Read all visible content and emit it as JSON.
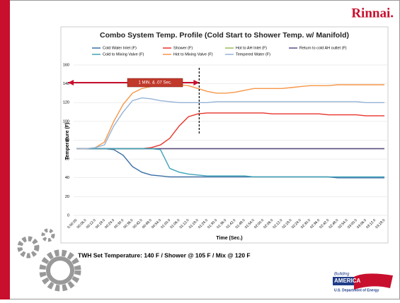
{
  "logo": "Rinnai.",
  "chart_data": {
    "type": "line",
    "title": "Combo System Temp. Profile (Cold Start to Shower Temp. w/ Manifold)",
    "x_label": "Time (Sec.)",
    "y_label": "Temperature (F)",
    "categories": [
      "0:00:00",
      "00:06.0",
      "00:12.0",
      "00:18.0",
      "00:24.0",
      "00:30.0",
      "00:36.0",
      "00:42.0",
      "00:48.0",
      "00:54.0",
      "01:00.0",
      "01:06.0",
      "01:12.0",
      "01:18.0",
      "01:24.0",
      "01:30.0",
      "01:36.0",
      "01:42.0",
      "01:48.0",
      "01:54.0",
      "02:00.0",
      "02:06.0",
      "02:12.0",
      "02:18.0",
      "02:24.0",
      "02:30.0",
      "02:36.0",
      "02:42.0",
      "02:48.0",
      "02:54.0",
      "03:00.0",
      "03:06.0",
      "03:12.0",
      "03:18.0"
    ],
    "series": [
      {
        "name": "Cold Water Inlet (F)",
        "color": "#3a6ea5",
        "values": [
          71,
          71,
          71,
          71,
          70,
          64,
          52,
          46,
          43,
          42,
          41,
          41,
          41,
          41,
          41,
          41,
          41,
          41,
          41,
          41,
          41,
          41,
          41,
          41,
          41,
          41,
          41,
          41,
          40,
          40,
          40,
          40,
          40,
          40
        ]
      },
      {
        "name": "Shower (F)",
        "color": "#e8322b",
        "values": [
          71,
          71,
          71,
          71,
          71,
          71,
          71,
          71,
          72,
          75,
          82,
          95,
          105,
          108,
          109,
          109,
          109,
          109,
          109,
          109,
          109,
          108,
          108,
          108,
          108,
          108,
          108,
          107,
          107,
          107,
          107,
          106,
          106,
          106
        ]
      },
      {
        "name": "Hot to AH Inlet (F)",
        "color": "#9bbb59",
        "values": [
          71,
          71,
          71,
          71,
          71,
          71,
          71,
          71,
          71,
          71,
          71,
          71,
          71,
          71,
          71,
          71,
          71,
          71,
          71,
          71,
          71,
          71,
          71,
          71,
          71,
          71,
          71,
          71,
          71,
          71,
          71,
          71,
          71,
          71
        ]
      },
      {
        "name": "Return to cold AH outlet (F)",
        "color": "#5c4a8c",
        "values": [
          71,
          71,
          71,
          71,
          71,
          71,
          71,
          71,
          71,
          71,
          71,
          71,
          71,
          71,
          71,
          71,
          71,
          71,
          71,
          71,
          71,
          71,
          71,
          71,
          71,
          71,
          71,
          71,
          71,
          71,
          71,
          71,
          71,
          71
        ]
      },
      {
        "name": "Cold to Mixing Valve (F)",
        "color": "#3fa3b8",
        "values": [
          71,
          71,
          71,
          71,
          71,
          71,
          71,
          71,
          71,
          70,
          50,
          46,
          44,
          43,
          42,
          42,
          42,
          42,
          42,
          41,
          41,
          41,
          41,
          41,
          41,
          41,
          41,
          41,
          41,
          41,
          41,
          41,
          41,
          41
        ]
      },
      {
        "name": "Hot to Mixing Valve (F)",
        "color": "#f79646",
        "values": [
          71,
          71,
          72,
          78,
          100,
          118,
          130,
          135,
          137,
          138,
          139,
          139,
          138,
          135,
          132,
          130,
          130,
          131,
          133,
          135,
          135,
          135,
          135,
          136,
          137,
          138,
          138,
          138,
          139,
          139,
          139,
          139,
          139,
          139
        ]
      },
      {
        "name": "Tempered Water (F)",
        "color": "#95b3d7",
        "values": [
          71,
          71,
          72,
          75,
          95,
          110,
          122,
          125,
          124,
          122,
          121,
          120,
          120,
          120,
          120,
          121,
          121,
          121,
          121,
          121,
          121,
          121,
          121,
          121,
          121,
          121,
          121,
          121,
          121,
          121,
          121,
          120,
          120,
          120
        ]
      }
    ],
    "ylim": [
      0,
      160
    ],
    "yticks": [
      0,
      20,
      40,
      60,
      80,
      100,
      120,
      140,
      160
    ],
    "grid": true,
    "annotation": "1 MIN. & .07 Sec."
  },
  "footer_note": "TWH Set Temperature: 140 F / Shower @ 105 F / Mix @ 120 F",
  "partner_logo": {
    "line1": "Building",
    "line2": "AMERICA",
    "line3": "U.S. Department of Energy"
  }
}
